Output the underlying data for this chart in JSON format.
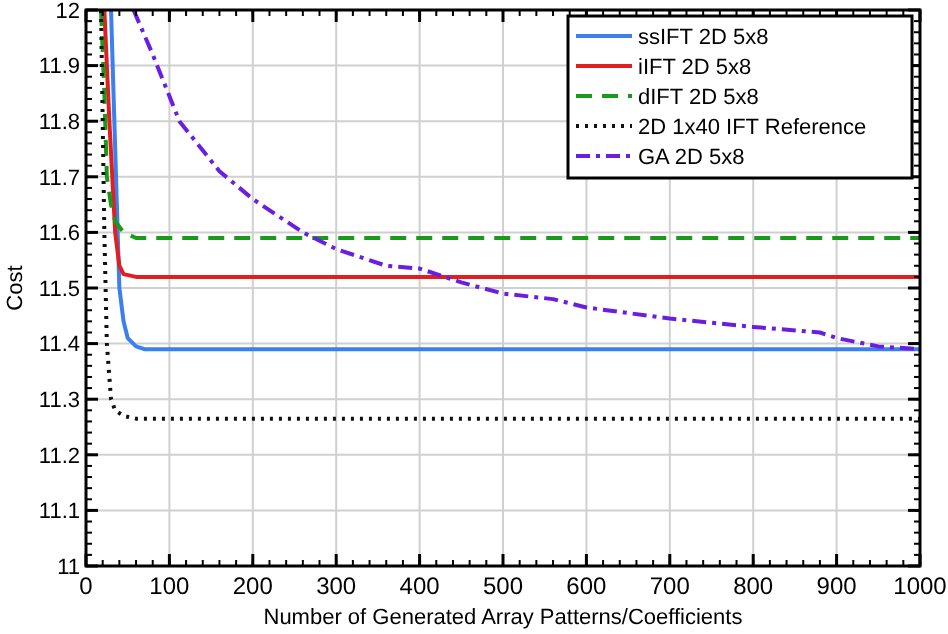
{
  "chart_data": {
    "type": "line",
    "xlabel": "Number of Generated Array Patterns/Coefficients",
    "ylabel": "Cost",
    "xlim": [
      0,
      1000
    ],
    "ylim": [
      11,
      12
    ],
    "xticks": [
      0,
      100,
      200,
      300,
      400,
      500,
      600,
      700,
      800,
      900,
      1000
    ],
    "yticks": [
      11,
      11.1,
      11.2,
      11.3,
      11.4,
      11.5,
      11.6,
      11.7,
      11.8,
      11.9,
      12
    ],
    "grid": true,
    "legend": "top right",
    "series": [
      {
        "name": "ssIFT 2D 5x8",
        "color": "#3b7ff0",
        "line_style": "solid",
        "x": [
          30,
          35,
          40,
          45,
          50,
          60,
          70,
          1000
        ],
        "values": [
          12,
          11.75,
          11.5,
          11.44,
          11.41,
          11.395,
          11.39,
          11.39
        ]
      },
      {
        "name": "iIFT 2D 5x8",
        "color": "#e02020",
        "line_style": "solid",
        "x": [
          22,
          28,
          35,
          40,
          45,
          60,
          1000
        ],
        "values": [
          12,
          11.8,
          11.6,
          11.54,
          11.525,
          11.52,
          11.52
        ]
      },
      {
        "name": "dIFT 2D 5x8",
        "color": "#1a9a1a",
        "line_style": "dashed",
        "x": [
          18,
          22,
          25,
          30,
          35,
          45,
          60,
          80,
          1000
        ],
        "values": [
          12,
          11.85,
          11.7,
          11.65,
          11.62,
          11.6,
          11.59,
          11.59,
          11.59
        ]
      },
      {
        "name": "2D 1x40 IFT Reference",
        "color": "#111111",
        "line_style": "dotted",
        "x": [
          18,
          20,
          22,
          25,
          30,
          35,
          45,
          60,
          1000
        ],
        "values": [
          12,
          11.8,
          11.6,
          11.4,
          11.3,
          11.28,
          11.27,
          11.265,
          11.265
        ]
      },
      {
        "name": "GA 2D 5x8",
        "color": "#6a1fe0",
        "line_style": "dashdot",
        "x": [
          57,
          80,
          112,
          160,
          200,
          260,
          300,
          360,
          400,
          450,
          500,
          560,
          600,
          700,
          800,
          880,
          900,
          950,
          1000
        ],
        "values": [
          12,
          11.92,
          11.8,
          11.71,
          11.66,
          11.6,
          11.57,
          11.54,
          11.535,
          11.51,
          11.49,
          11.48,
          11.465,
          11.445,
          11.43,
          11.42,
          11.41,
          11.395,
          11.39
        ]
      }
    ]
  }
}
